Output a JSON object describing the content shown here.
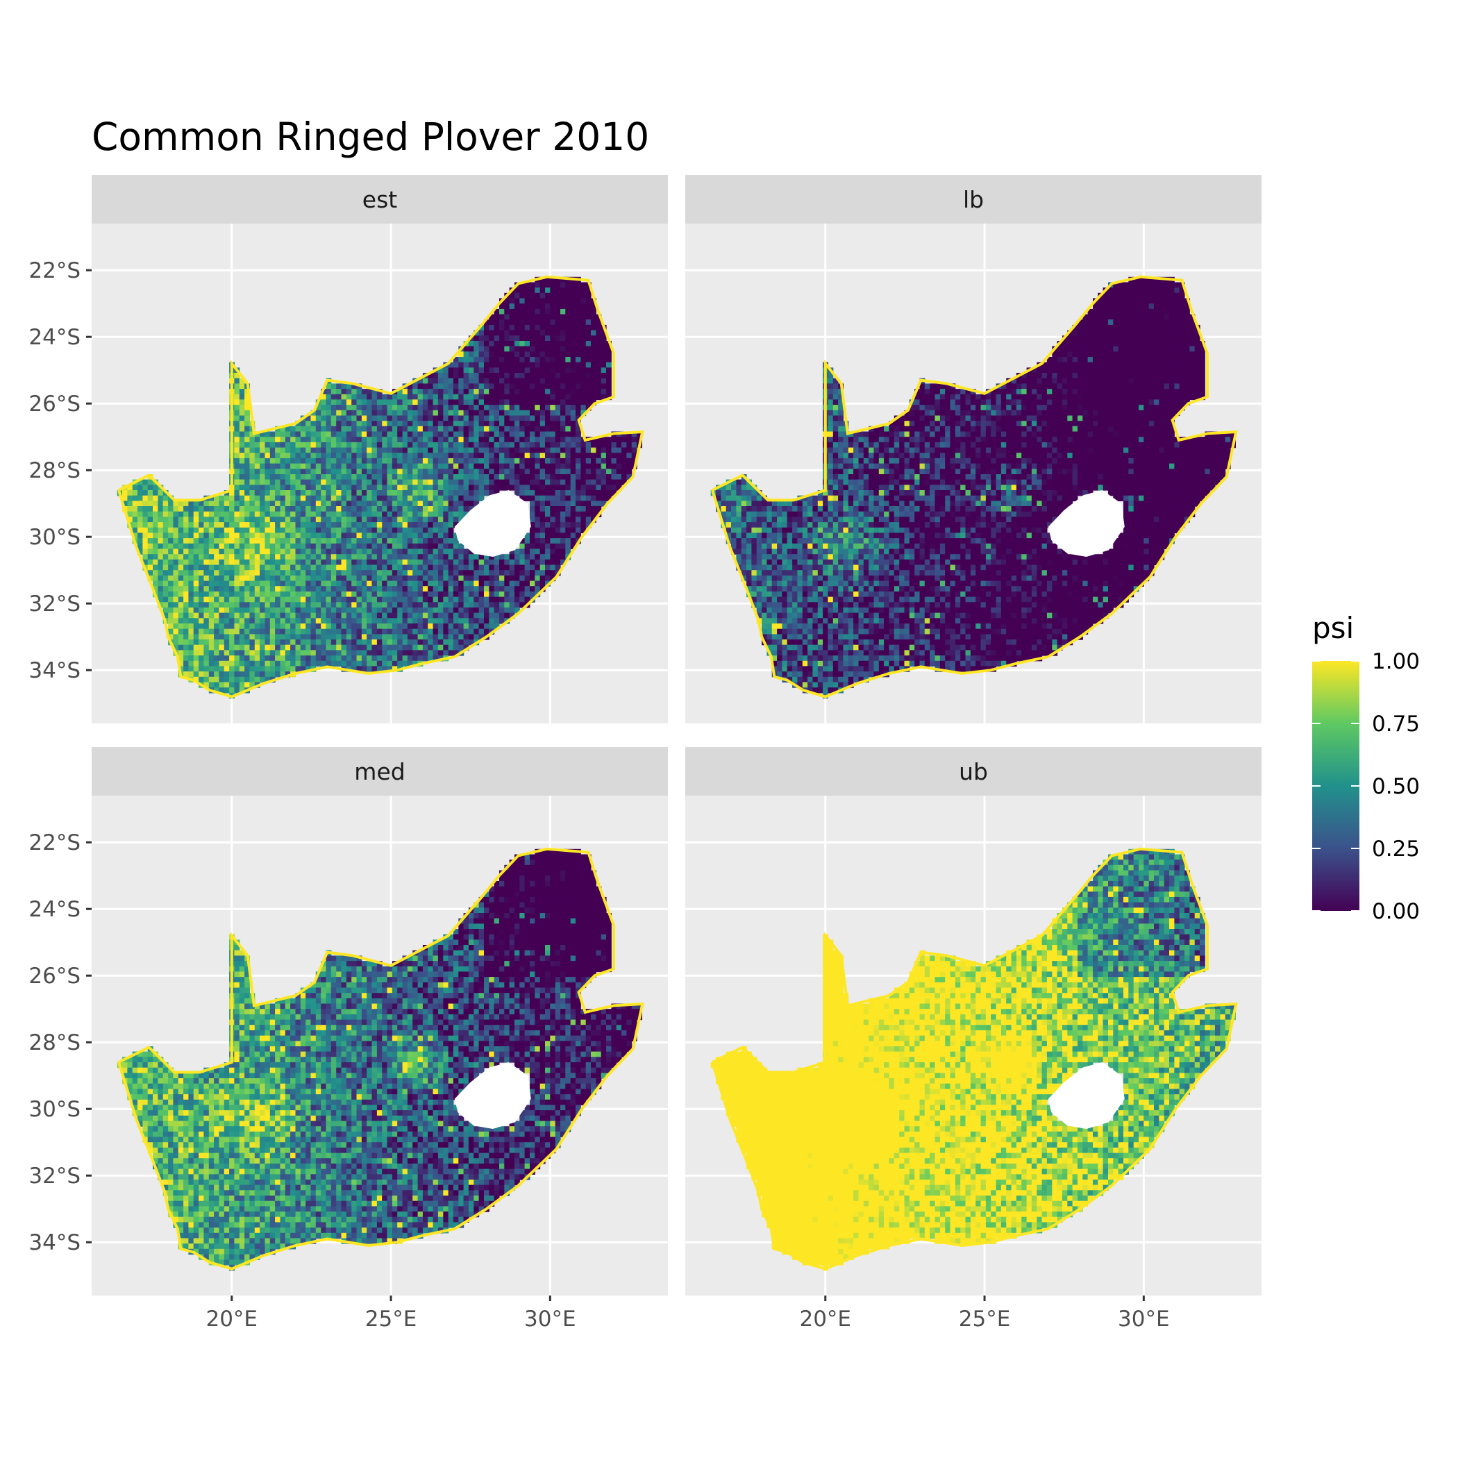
{
  "title": "Common Ringed Plover 2010",
  "facets": [
    "est",
    "lb",
    "med",
    "ub"
  ],
  "axes": {
    "y_ticks": [
      "22°S",
      "24°S",
      "26°S",
      "28°S",
      "30°S",
      "32°S",
      "34°S"
    ],
    "x_ticks": [
      "20°E",
      "25°E",
      "30°E"
    ]
  },
  "legend": {
    "title": "psi",
    "ticks": [
      "1.00",
      "0.75",
      "0.50",
      "0.25",
      "0.00"
    ]
  },
  "colors": {
    "panel_bg": "#ebebeb",
    "strip_bg": "#d9d9d9",
    "grid": "#ffffff",
    "viridis": [
      "#440154",
      "#3b528b",
      "#21918c",
      "#5ec962",
      "#fde725"
    ]
  },
  "chart_data": {
    "type": "heatmap",
    "title": "Common Ringed Plover 2010",
    "xlabel": "",
    "ylabel": "",
    "x_range_deg_E": [
      15.6,
      33.7
    ],
    "y_range_deg_S": [
      -35.6,
      -20.6
    ],
    "x_ticks_deg_E": [
      20,
      25,
      30
    ],
    "y_ticks_deg_S": [
      -22,
      -24,
      -26,
      -28,
      -30,
      -32,
      -34
    ],
    "fill_variable": "psi",
    "fill_scale": "viridis",
    "fill_range": [
      0,
      1
    ],
    "panels": [
      {
        "name": "est",
        "overall_level": 0.35
      },
      {
        "name": "lb",
        "overall_level": 0.1
      },
      {
        "name": "med",
        "overall_level": 0.33
      },
      {
        "name": "ub",
        "overall_level": 0.75
      }
    ],
    "grid": true,
    "legend_position": "right"
  }
}
